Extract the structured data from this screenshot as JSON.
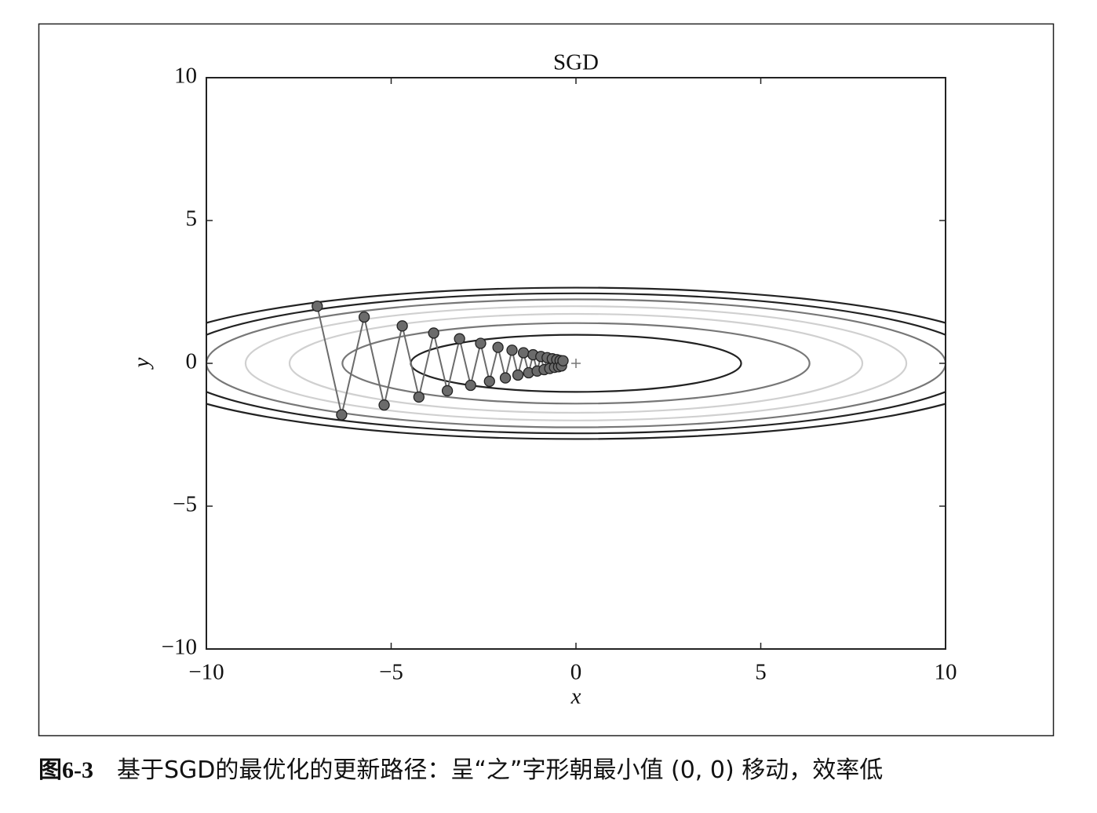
{
  "chart_data": {
    "type": "contour-path",
    "title": "SGD",
    "x_label": "x",
    "y_label": "y",
    "xlim": [
      -10,
      10
    ],
    "ylim": [
      -10,
      10
    ],
    "xticks": [
      {
        "value": -10,
        "label": "−10"
      },
      {
        "value": -5,
        "label": "−5"
      },
      0,
      5,
      10
    ],
    "yticks": [
      {
        "value": -10,
        "label": "−10"
      },
      {
        "value": -5,
        "label": "−5"
      },
      0,
      5,
      10
    ],
    "contours": [
      {
        "rx": 4.47,
        "ry": 1.0,
        "color": "#222222"
      },
      {
        "rx": 6.32,
        "ry": 1.41,
        "color": "#777777"
      },
      {
        "rx": 7.75,
        "ry": 1.73,
        "color": "#d0d0d0"
      },
      {
        "rx": 8.94,
        "ry": 2.0,
        "color": "#d0d0d0"
      },
      {
        "rx": 10.0,
        "ry": 2.24,
        "color": "#777777"
      },
      {
        "rx": 10.95,
        "ry": 2.45,
        "color": "#222222"
      },
      {
        "rx": 11.83,
        "ry": 2.65,
        "color": "#222222"
      }
    ],
    "minimum": {
      "x": 0,
      "y": 0,
      "color": "#777777"
    },
    "path_color": "#6b6b6b",
    "x": [
      -7,
      -6.34,
      -5.73,
      -5.19,
      -4.7,
      -4.25,
      -3.85,
      -3.48,
      -3.15,
      -2.85,
      -2.58,
      -2.34,
      -2.11,
      -1.91,
      -1.73,
      -1.57,
      -1.42,
      -1.28,
      -1.16,
      -1.05,
      -0.95,
      -0.86,
      -0.78,
      -0.71,
      -0.64,
      -0.58,
      -0.52,
      -0.47,
      -0.43,
      -0.39,
      -0.35
    ],
    "y": [
      2,
      -1.8,
      1.62,
      -1.46,
      1.31,
      -1.18,
      1.06,
      -0.96,
      0.86,
      -0.77,
      0.7,
      -0.63,
      0.56,
      -0.51,
      0.46,
      -0.41,
      0.37,
      -0.33,
      0.3,
      -0.27,
      0.24,
      -0.22,
      0.2,
      -0.18,
      0.16,
      -0.14,
      0.13,
      -0.12,
      0.1,
      -0.09,
      0.09
    ]
  },
  "caption": {
    "label": "图6-3",
    "text": "基于SGD的最优化的更新路径：呈“之”字形朝最小值 (0, 0) 移动，效率低"
  }
}
